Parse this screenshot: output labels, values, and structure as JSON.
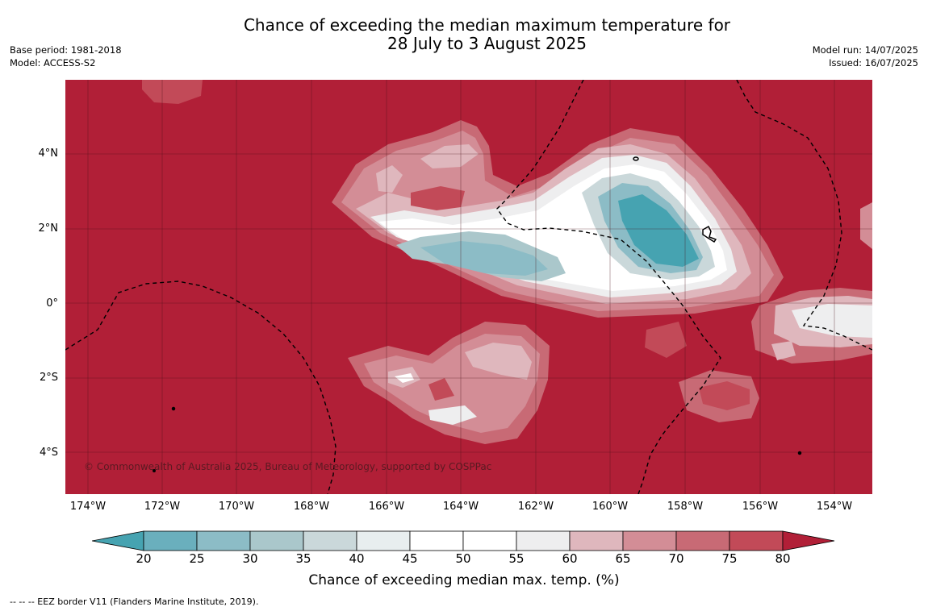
{
  "title_line1": "Chance of exceeding the median maximum temperature for",
  "title_line2": "28 July to 3 August 2025",
  "meta_left": [
    "Base period: 1981-2018",
    "Model: ACCESS-S2"
  ],
  "meta_right": [
    "Model run: 14/07/2025",
    "Issued: 16/07/2025"
  ],
  "copyright": "© Commonwealth of Australia 2025, Bureau of Meteorology, supported by COSPPac",
  "lat_ticks": [
    "4°N",
    "2°N",
    "0°",
    "2°S",
    "4°S"
  ],
  "lon_ticks": [
    "174°W",
    "172°W",
    "170°W",
    "168°W",
    "166°W",
    "164°W",
    "162°W",
    "160°W",
    "158°W",
    "156°W",
    "154°W"
  ],
  "colorbar": {
    "labels": [
      "20",
      "25",
      "30",
      "35",
      "40",
      "45",
      "50",
      "55",
      "60",
      "65",
      "70",
      "75",
      "80"
    ],
    "colors": [
      "#46a3b1",
      "#6aafbd",
      "#8cbcc6",
      "#aac7cb",
      "#cad8da",
      "#e8eeef",
      "#ffffff",
      "#ffffff",
      "#eeeeef",
      "#dfb7bd",
      "#d38d96",
      "#c86a75",
      "#c24a58",
      "#b11f37"
    ],
    "title": "Chance of exceeding median max. temp. (%)"
  },
  "footer": "--  --  -- EEZ border V11 (Flanders Marine Institute, 2019)."
}
